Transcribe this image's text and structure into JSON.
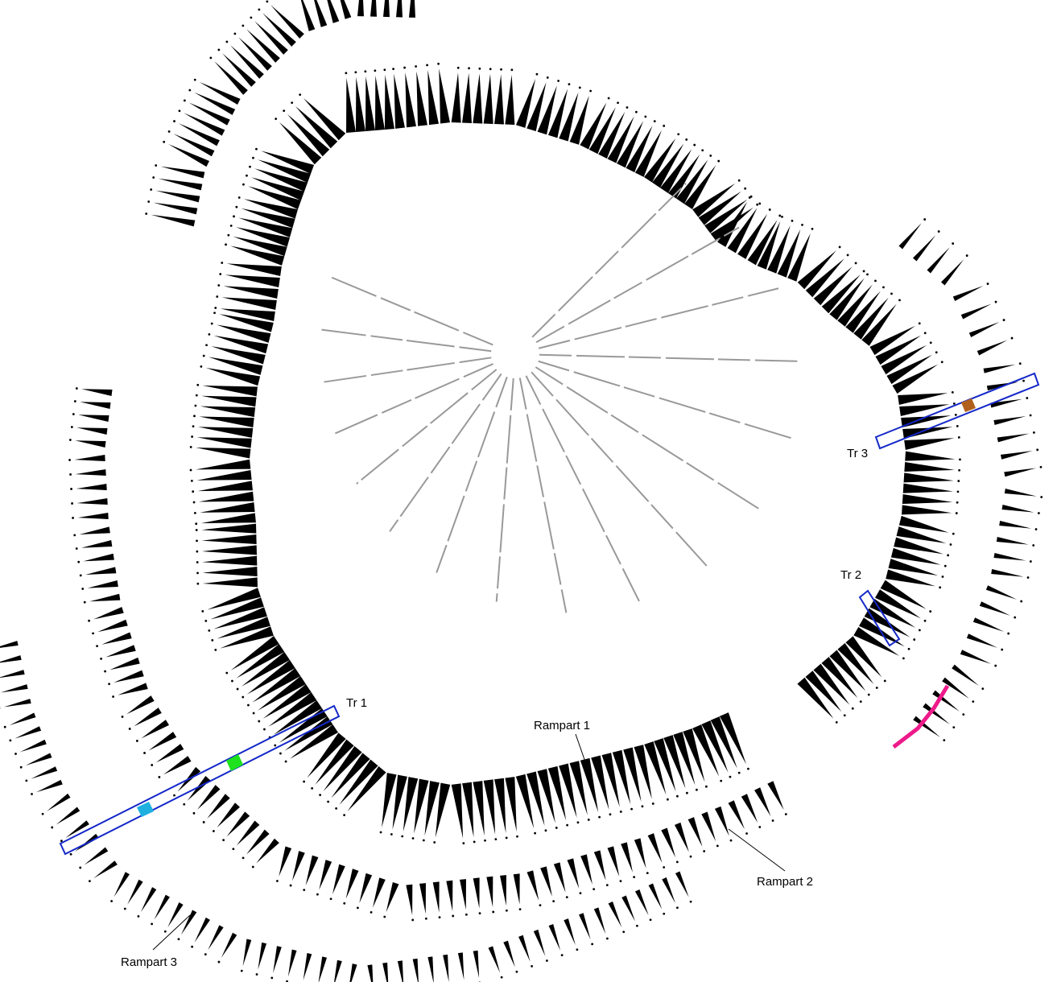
{
  "labels": {
    "tr1": "Tr 1",
    "tr2": "Tr 2",
    "tr3": "Tr 3",
    "rampart1": "Rampart 1",
    "rampart2": "Rampart 2",
    "rampart3": "Rampart 3"
  }
}
